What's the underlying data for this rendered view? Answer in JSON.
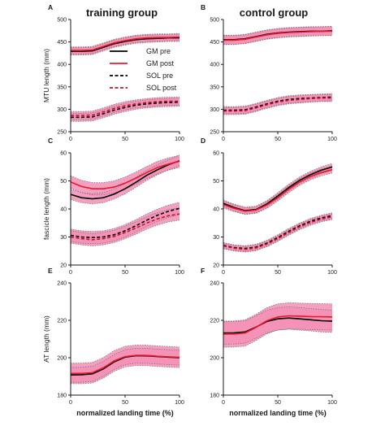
{
  "headers": {
    "left": "training group",
    "right": "control group"
  },
  "legend": [
    {
      "label": "GM pre",
      "color": "#000000",
      "dash": false
    },
    {
      "label": "GM post",
      "color": "#e8192c",
      "dash": false
    },
    {
      "label": "SOL pre",
      "color": "#000000",
      "dash": true
    },
    {
      "label": "SOL post",
      "color": "#c0152a",
      "dash": true
    }
  ],
  "colors": {
    "band": "#f48fb6",
    "band_opacity": 0.85,
    "sd_line": "#7a7a7a",
    "axis": "#1a1a1a"
  },
  "chart_data": [
    {
      "panel": "A",
      "type": "line",
      "ylabel": "MTU length (mm)",
      "ylim": [
        250,
        500
      ],
      "yticks": [
        250,
        300,
        350,
        400,
        450,
        500
      ],
      "xlim": [
        0,
        100
      ],
      "xticks": [
        0,
        50,
        100
      ],
      "x": [
        0,
        10,
        20,
        30,
        40,
        50,
        60,
        70,
        80,
        90,
        100
      ],
      "series": [
        {
          "name": "GM pre",
          "values": [
            429,
            429,
            430,
            438,
            446,
            451,
            455,
            457,
            458,
            459,
            459
          ],
          "sd": 8,
          "dash": false,
          "color": "#000000"
        },
        {
          "name": "GM post",
          "values": [
            431,
            431,
            432,
            440,
            448,
            453,
            457,
            459,
            460,
            460,
            461
          ],
          "sd": 8,
          "dash": false,
          "color": "#e8192c"
        },
        {
          "name": "SOL pre",
          "values": [
            282,
            282,
            283,
            290,
            298,
            304,
            309,
            312,
            314,
            315,
            316
          ],
          "sd": 9,
          "dash": true,
          "color": "#000000"
        },
        {
          "name": "SOL post",
          "values": [
            286,
            286,
            287,
            294,
            302,
            308,
            312,
            315,
            317,
            318,
            318
          ],
          "sd": 9,
          "dash": true,
          "color": "#c0152a"
        }
      ],
      "show_legend": true
    },
    {
      "panel": "B",
      "type": "line",
      "ylabel": "",
      "ylim": [
        250,
        500
      ],
      "yticks": [
        250,
        300,
        350,
        400,
        450,
        500
      ],
      "xlim": [
        0,
        100
      ],
      "xticks": [
        0,
        50,
        100
      ],
      "x": [
        0,
        10,
        20,
        30,
        40,
        50,
        60,
        70,
        80,
        90,
        100
      ],
      "series": [
        {
          "name": "GM pre",
          "values": [
            455,
            455,
            457,
            462,
            467,
            470,
            472,
            473,
            474,
            474,
            475
          ],
          "sd": 10,
          "dash": false,
          "color": "#000000"
        },
        {
          "name": "GM post",
          "values": [
            454,
            454,
            456,
            461,
            466,
            469,
            471,
            472,
            473,
            474,
            474
          ],
          "sd": 10,
          "dash": false,
          "color": "#e8192c"
        },
        {
          "name": "SOL pre",
          "values": [
            298,
            298,
            299,
            305,
            312,
            318,
            322,
            324,
            325,
            326,
            327
          ],
          "sd": 8,
          "dash": true,
          "color": "#000000"
        },
        {
          "name": "SOL post",
          "values": [
            296,
            296,
            297,
            303,
            310,
            316,
            320,
            322,
            324,
            325,
            325
          ],
          "sd": 8,
          "dash": true,
          "color": "#c0152a"
        }
      ],
      "show_legend": false
    },
    {
      "panel": "C",
      "type": "line",
      "ylabel": "fascicle length (mm)",
      "ylim": [
        20,
        60
      ],
      "yticks": [
        20,
        30,
        40,
        50,
        60
      ],
      "xlim": [
        0,
        100
      ],
      "xticks": [
        0,
        50,
        100
      ],
      "x": [
        0,
        10,
        20,
        30,
        40,
        50,
        60,
        70,
        80,
        90,
        100
      ],
      "series": [
        {
          "name": "GM pre",
          "values": [
            45.2,
            44.0,
            43.6,
            44.0,
            45.3,
            47.2,
            49.5,
            52.0,
            54.0,
            55.8,
            57.2
          ],
          "sd": 1.8,
          "dash": false,
          "color": "#000000"
        },
        {
          "name": "GM post",
          "values": [
            49.6,
            48.0,
            47.2,
            47.2,
            47.8,
            49.2,
            51.0,
            53.0,
            54.8,
            56.0,
            57.0
          ],
          "sd": 2.2,
          "dash": false,
          "color": "#e8192c"
        },
        {
          "name": "SOL pre",
          "values": [
            30.6,
            30.0,
            29.8,
            30.0,
            30.8,
            32.2,
            34.0,
            36.0,
            37.8,
            39.2,
            40.2
          ],
          "sd": 2.2,
          "dash": true,
          "color": "#000000"
        },
        {
          "name": "SOL post",
          "values": [
            30.0,
            29.4,
            29.0,
            29.4,
            30.2,
            31.6,
            33.2,
            35.0,
            36.5,
            37.6,
            38.2
          ],
          "sd": 2.2,
          "dash": true,
          "color": "#c0152a"
        }
      ],
      "show_legend": false
    },
    {
      "panel": "D",
      "type": "line",
      "ylabel": "",
      "ylim": [
        20,
        60
      ],
      "yticks": [
        20,
        30,
        40,
        50,
        60
      ],
      "xlim": [
        0,
        100
      ],
      "xticks": [
        0,
        50,
        100
      ],
      "x": [
        0,
        10,
        20,
        30,
        40,
        50,
        60,
        70,
        80,
        90,
        100
      ],
      "series": [
        {
          "name": "GM pre",
          "values": [
            42.0,
            40.5,
            39.4,
            39.8,
            41.8,
            44.6,
            47.6,
            50.2,
            52.2,
            53.8,
            55.0
          ],
          "sd": 1.2,
          "dash": false,
          "color": "#000000"
        },
        {
          "name": "GM post",
          "values": [
            41.5,
            40.2,
            39.2,
            39.6,
            41.4,
            44.0,
            47.0,
            49.6,
            51.6,
            53.0,
            54.0
          ],
          "sd": 1.2,
          "dash": false,
          "color": "#e8192c"
        },
        {
          "name": "SOL pre",
          "values": [
            27.0,
            26.2,
            25.9,
            26.4,
            27.8,
            29.8,
            32.0,
            34.0,
            35.6,
            36.8,
            37.6
          ],
          "sd": 1.0,
          "dash": true,
          "color": "#000000"
        },
        {
          "name": "SOL post",
          "values": [
            26.8,
            26.0,
            25.6,
            26.1,
            27.5,
            29.4,
            31.6,
            33.6,
            35.2,
            36.4,
            37.2
          ],
          "sd": 1.0,
          "dash": true,
          "color": "#c0152a"
        }
      ],
      "show_legend": false
    },
    {
      "panel": "E",
      "type": "line",
      "ylabel": "AT length (mm)",
      "ylim": [
        180,
        240
      ],
      "yticks": [
        180,
        200,
        220,
        240
      ],
      "xlim": [
        0,
        100
      ],
      "xticks": [
        0,
        50,
        100
      ],
      "x": [
        0,
        10,
        20,
        30,
        40,
        50,
        60,
        70,
        80,
        90,
        100
      ],
      "series": [
        {
          "name": "GM pre",
          "values": [
            190.8,
            190.9,
            191.4,
            194.0,
            197.8,
            200.3,
            201.1,
            201.0,
            200.6,
            200.3,
            200.0
          ],
          "sd": 4.0,
          "dash": false,
          "color": "#000000"
        },
        {
          "name": "GM post",
          "values": [
            191.6,
            191.6,
            192.0,
            194.6,
            198.3,
            200.6,
            201.3,
            201.2,
            200.8,
            200.5,
            200.2
          ],
          "sd": 5.5,
          "dash": false,
          "color": "#e8192c"
        }
      ],
      "show_legend": false
    },
    {
      "panel": "F",
      "type": "line",
      "ylabel": "",
      "ylim": [
        180,
        240
      ],
      "yticks": [
        180,
        200,
        220,
        240
      ],
      "xlim": [
        0,
        100
      ],
      "xticks": [
        0,
        50,
        100
      ],
      "x": [
        0,
        10,
        20,
        30,
        40,
        50,
        60,
        70,
        80,
        90,
        100
      ],
      "series": [
        {
          "name": "GM pre",
          "values": [
            213.2,
            213.3,
            213.8,
            216.4,
            219.4,
            220.8,
            221.2,
            220.8,
            220.3,
            219.8,
            219.5
          ],
          "sd": 6.0,
          "dash": false,
          "color": "#000000"
        },
        {
          "name": "GM post",
          "values": [
            212.6,
            212.7,
            213.2,
            216.2,
            219.8,
            221.8,
            222.4,
            222.2,
            222.0,
            221.9,
            221.8
          ],
          "sd": 7.0,
          "dash": false,
          "color": "#e8192c"
        }
      ],
      "show_legend": false
    }
  ],
  "xlabel": "normalized landing time (%)"
}
